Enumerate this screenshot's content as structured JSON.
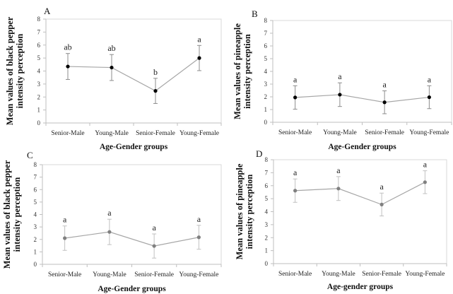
{
  "chart_data": [
    {
      "panel": "A",
      "type": "line",
      "categories": [
        "Senior-Male",
        "Young-Male",
        "Senior-Female",
        "Young-Female"
      ],
      "values": [
        4.35,
        4.27,
        2.47,
        5.0
      ],
      "error": [
        1.0,
        1.0,
        0.97,
        0.97
      ],
      "significance": [
        "ab",
        "ab",
        "b",
        "a"
      ],
      "ylabel": [
        "Mean values of black pepper",
        "intensity perception"
      ],
      "xlabel": "Age-Gender groups",
      "ylim": [
        0,
        8
      ],
      "yticks": [
        "0",
        "1",
        "2",
        "3",
        "4",
        "5",
        "6",
        "7",
        "8"
      ],
      "marker_color": "#000000",
      "grid": false
    },
    {
      "panel": "B",
      "type": "line",
      "categories": [
        "Senior-Male",
        "Young-Male",
        "Senior-Female",
        "Young-Female"
      ],
      "values": [
        1.95,
        2.17,
        1.57,
        1.97
      ],
      "error": [
        0.92,
        0.93,
        0.9,
        0.9
      ],
      "significance": [
        "a",
        "a",
        "a",
        "a"
      ],
      "ylabel": [
        "Mean values of pineapple",
        "intensity perception"
      ],
      "xlabel": "Age-Gender groups",
      "ylim": [
        0,
        8
      ],
      "yticks": [
        "0",
        "1",
        "2",
        "3",
        "4",
        "5",
        "6",
        "7",
        "8"
      ],
      "marker_color": "#000000",
      "grid": false
    },
    {
      "panel": "C",
      "type": "line",
      "categories": [
        "Senior-Male",
        "Young-Male",
        "Senior-Female",
        "Young-Female"
      ],
      "values": [
        2.1,
        2.6,
        1.47,
        2.17
      ],
      "error": [
        0.98,
        1.02,
        0.97,
        0.96
      ],
      "significance": [
        "a",
        "a",
        "a",
        "a"
      ],
      "ylabel": [
        "Mean values of black pepper",
        "intensity perception"
      ],
      "xlabel": "Age-Gender groups",
      "ylim": [
        0,
        8
      ],
      "yticks": [
        "0",
        "1",
        "2",
        "3",
        "4",
        "5",
        "6",
        "7",
        "8"
      ],
      "marker_color": "#808080",
      "grid": false
    },
    {
      "panel": "D",
      "type": "line",
      "categories": [
        "Senior-Male",
        "Young-Male",
        "Senior-Female",
        "Young-Female"
      ],
      "values": [
        5.62,
        5.78,
        4.55,
        6.27
      ],
      "error": [
        0.9,
        0.92,
        0.88,
        0.88
      ],
      "significance": [
        "a",
        "a",
        "a",
        "a"
      ],
      "ylabel": [
        "Mean values of pineapple",
        "intensity perception"
      ],
      "xlabel": "Age-gender groups",
      "ylim": [
        0,
        8
      ],
      "yticks": [
        "0",
        "1",
        "2",
        "3",
        "4",
        "5",
        "6",
        "7",
        "8"
      ],
      "marker_color": "#808080",
      "grid": false
    }
  ]
}
